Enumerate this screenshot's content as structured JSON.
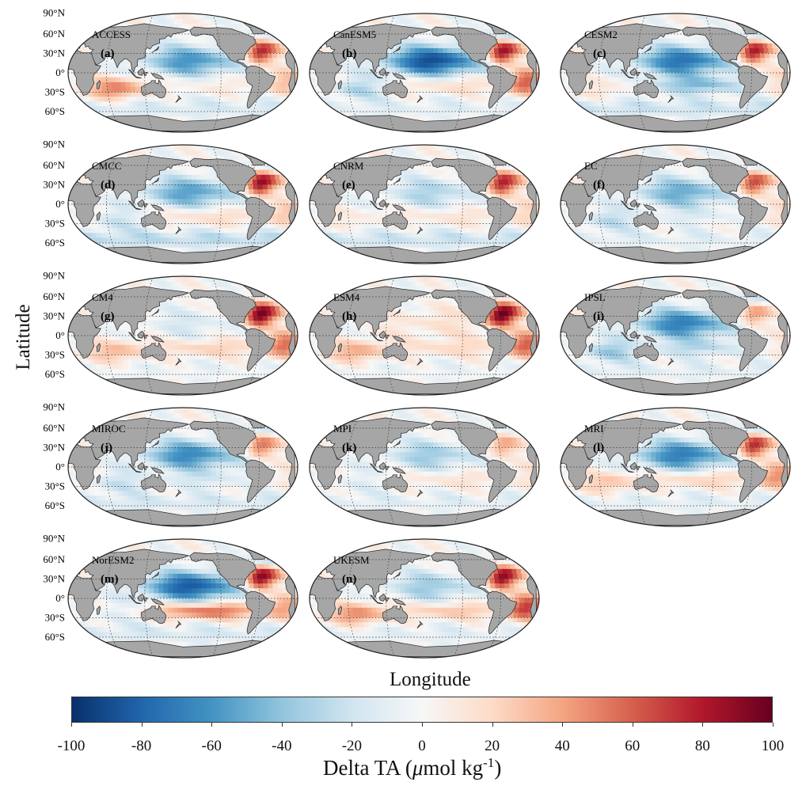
{
  "figure": {
    "xlabel": "Longitude",
    "ylabel": "Latitude",
    "colorbar": {
      "title_prefix": "Delta TA (",
      "title_mu": "μ",
      "title_mid": "mol kg",
      "title_sup": "-1",
      "title_suffix": ")",
      "ticks": [
        "-100",
        "-80",
        "-60",
        "-40",
        "-20",
        "0",
        "20",
        "40",
        "60",
        "80",
        "100"
      ],
      "range": [
        -100,
        100
      ],
      "colormap": [
        "#08306b",
        "#2166ac",
        "#4393c3",
        "#92c5de",
        "#d1e5f0",
        "#f7f7f7",
        "#fddbc7",
        "#f4a582",
        "#d6604d",
        "#b2182b",
        "#67001f"
      ]
    },
    "lat_labels": [
      "90°N",
      "60°N",
      "30°N",
      "0°",
      "30°S",
      "60°S"
    ],
    "land_color": "#a6a6a6"
  },
  "panels": [
    {
      "model": "ACCESS",
      "letter": "(a)",
      "pattern": {
        "np": -60,
        "nt": 70,
        "sp": 10,
        "io": 55,
        "sa": 30,
        "so": -15
      }
    },
    {
      "model": "CanESM5",
      "letter": "(b)",
      "pattern": {
        "np": -90,
        "nt": 80,
        "sp": 20,
        "io": -30,
        "sa": 60,
        "so": -10
      }
    },
    {
      "model": "CESM2",
      "letter": "(c)",
      "pattern": {
        "np": -75,
        "nt": 75,
        "sp": -40,
        "io": 15,
        "sa": 20,
        "so": -20
      }
    },
    {
      "model": "CMCC",
      "letter": "(d)",
      "pattern": {
        "np": -55,
        "nt": 80,
        "sp": 20,
        "io": -20,
        "sa": 25,
        "so": -25
      }
    },
    {
      "model": "CNRM",
      "letter": "(e)",
      "pattern": {
        "np": -30,
        "nt": 70,
        "sp": 15,
        "io": 10,
        "sa": 20,
        "so": -20
      }
    },
    {
      "model": "EC",
      "letter": "(f)",
      "pattern": {
        "np": -50,
        "nt": 60,
        "sp": -10,
        "io": -25,
        "sa": 15,
        "so": -10
      }
    },
    {
      "model": "CM4",
      "letter": "(g)",
      "pattern": {
        "np": -15,
        "nt": 85,
        "sp": 25,
        "io": 35,
        "sa": 55,
        "so": -5
      }
    },
    {
      "model": "ESM4",
      "letter": "(h)",
      "pattern": {
        "np": 15,
        "nt": 85,
        "sp": 20,
        "io": 40,
        "sa": 60,
        "so": -5
      }
    },
    {
      "model": "IPSL",
      "letter": "(i)",
      "pattern": {
        "np": -70,
        "nt": 40,
        "sp": -25,
        "io": -35,
        "sa": 10,
        "so": -10
      }
    },
    {
      "model": "MIROC",
      "letter": "(j)",
      "pattern": {
        "np": -65,
        "nt": 50,
        "sp": -15,
        "io": -20,
        "sa": 10,
        "so": -15
      }
    },
    {
      "model": "MPI",
      "letter": "(k)",
      "pattern": {
        "np": -35,
        "nt": 35,
        "sp": 15,
        "io": -10,
        "sa": 10,
        "so": -10
      }
    },
    {
      "model": "MRI",
      "letter": "(l)",
      "pattern": {
        "np": -70,
        "nt": 70,
        "sp": 25,
        "io": 30,
        "sa": 45,
        "so": -10
      }
    },
    {
      "model": "NorESM2",
      "letter": "(m)",
      "pattern": {
        "np": -85,
        "nt": 85,
        "sp": 60,
        "io": -10,
        "sa": 35,
        "so": -15
      }
    },
    {
      "model": "UKESM",
      "letter": "(n)",
      "pattern": {
        "np": -35,
        "nt": 80,
        "sp": 30,
        "io": 50,
        "sa": 70,
        "so": -10
      }
    }
  ]
}
